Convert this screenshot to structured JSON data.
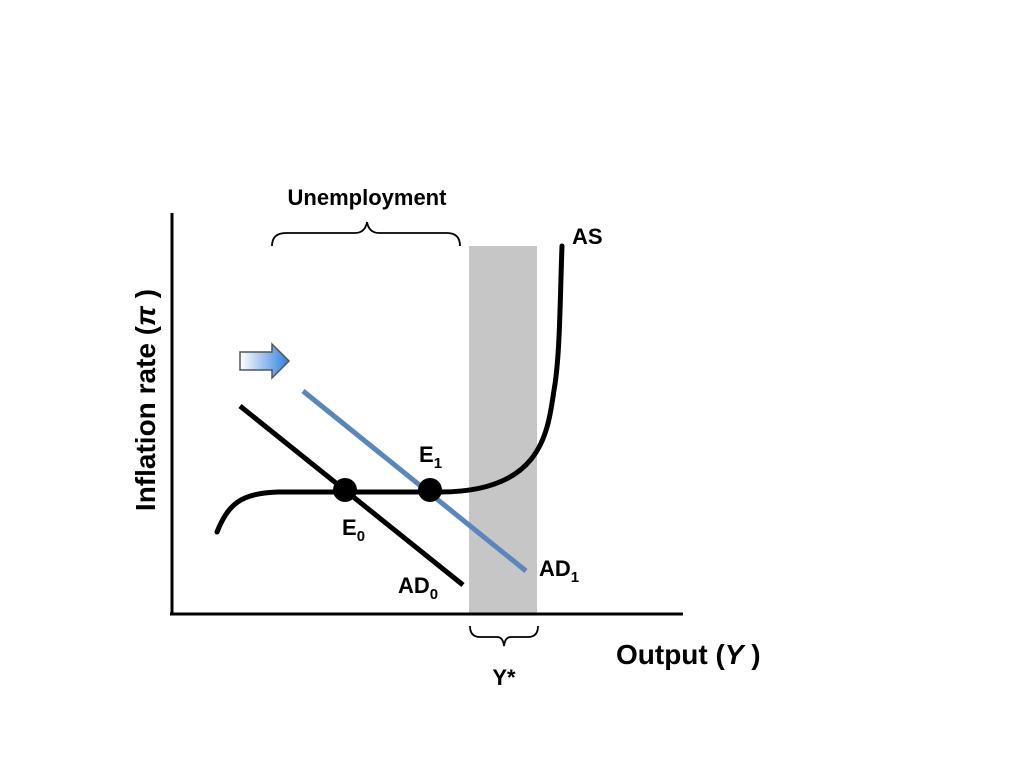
{
  "axes": {
    "y_label_text": "Inflation rate (",
    "y_label_symbol": "π",
    "y_label_close": " )",
    "x_label_text": "Output (",
    "x_label_symbol": "Y",
    "x_label_close": " )"
  },
  "brackets": {
    "unemployment_label": "Unemployment",
    "potential_output_label": "Y*"
  },
  "curves": {
    "as_label": "AS",
    "ad0_label": "AD",
    "ad0_sub": "0",
    "ad1_label": "AD",
    "ad1_sub": "1"
  },
  "points": {
    "e0_label": "E",
    "e0_sub": "0",
    "e1_label": "E",
    "e1_sub": "1"
  },
  "colors": {
    "ad1_line": "#5b86bd",
    "shade_band": "#c6c6c6",
    "arrow_light": "#ffffff",
    "arrow_dark": "#2f7fe0",
    "arrow_stroke": "#555555",
    "ink": "#000000"
  },
  "shift_arrow_icon": "right-arrow-icon"
}
